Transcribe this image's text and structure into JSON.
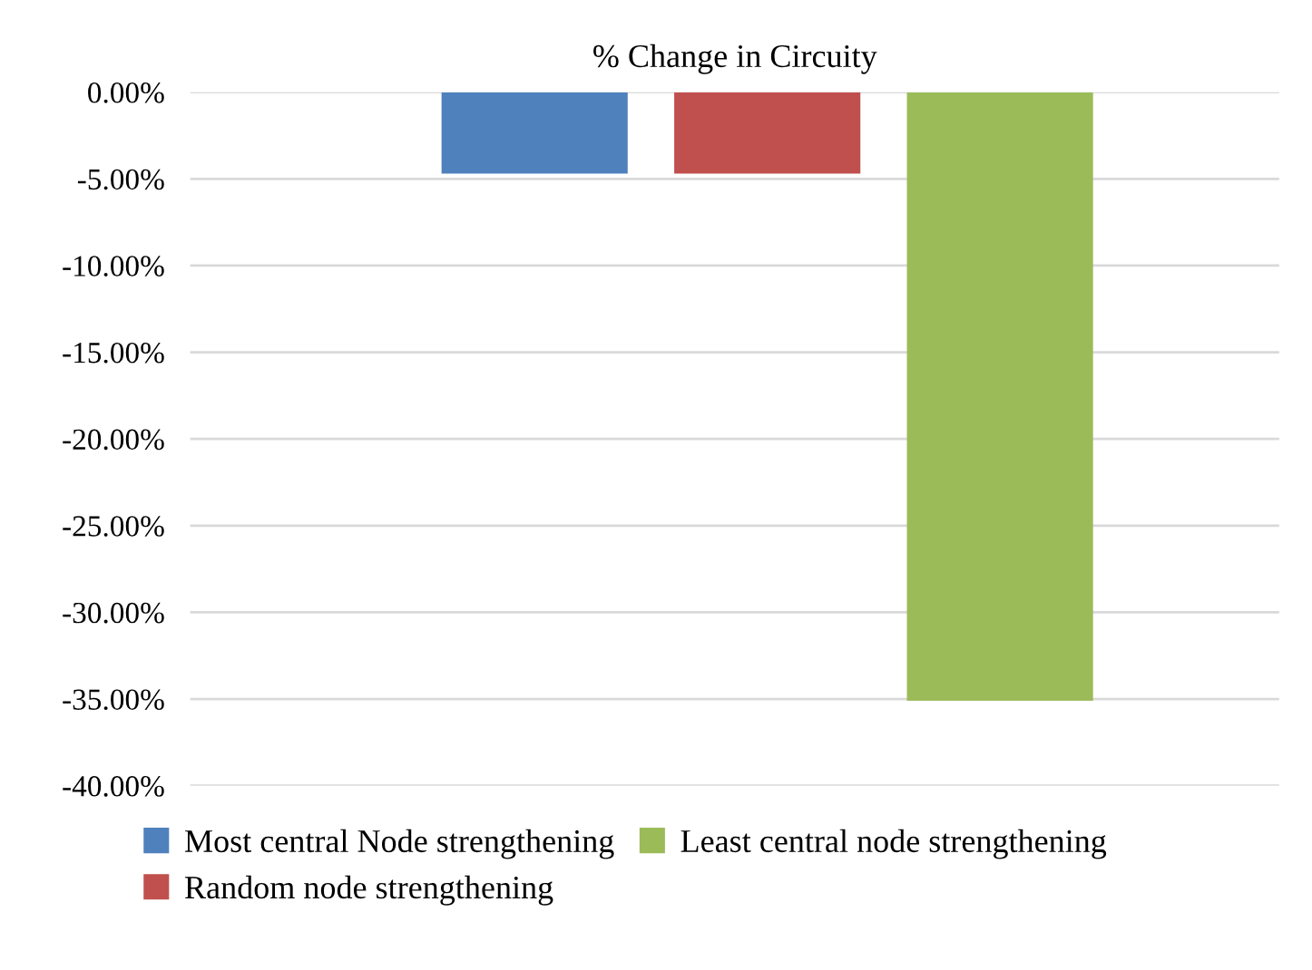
{
  "chart_data": {
    "type": "bar",
    "title": "% Change in Circuity",
    "categories": [
      null
    ],
    "series": [
      {
        "name": "Most central Node strengthening",
        "color": "#4f81bd",
        "values": [
          -4.7
        ]
      },
      {
        "name": "Random node strengthening",
        "color": "#c0504d",
        "values": [
          -4.7
        ]
      },
      {
        "name": "Least central node strengthening",
        "color": "#9bbb59",
        "values": [
          -35.1
        ]
      }
    ],
    "ylim": [
      -40,
      0
    ],
    "yticks": [
      {
        "value": 0,
        "label": "0.00%"
      },
      {
        "value": -5,
        "label": "-5.00%"
      },
      {
        "value": -10,
        "label": "-10.00%"
      },
      {
        "value": -15,
        "label": "-15.00%"
      },
      {
        "value": -20,
        "label": "-20.00%"
      },
      {
        "value": -25,
        "label": "-25.00%"
      },
      {
        "value": -30,
        "label": "-30.00%"
      },
      {
        "value": -35,
        "label": "-35.00%"
      },
      {
        "value": -40,
        "label": "-40.00%"
      }
    ],
    "grid": "y",
    "legend": "bottom"
  }
}
